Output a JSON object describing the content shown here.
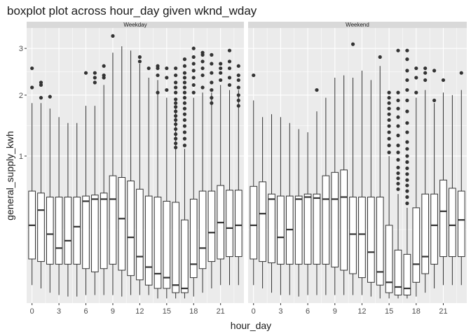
{
  "chart_data": {
    "type": "boxplot",
    "title": "boxplot plot across hour_day given wknd_wday",
    "xlabel": "hour_day",
    "ylabel": "general_supply_kwh",
    "y_scale": "sqrt",
    "ylim": [
      0,
      3.5
    ],
    "xlim": [
      -0.6,
      23.6
    ],
    "x_ticks": [
      0,
      3,
      6,
      9,
      12,
      15,
      18,
      21
    ],
    "y_ticks": [
      1,
      2,
      3
    ],
    "grid": true,
    "colors": {
      "panel_bg": "#ebebeb",
      "strip_bg": "#d9d9d9",
      "grid_major": "#ffffff",
      "box_fill": "#ffffff",
      "box_line": "#333333",
      "outlier": "#333333"
    },
    "facets": [
      {
        "label": "Weekday",
        "boxes": [
          {
            "x": 0,
            "lower": 0.015,
            "q1": 0.09,
            "median": 0.28,
            "q3": 0.58,
            "upper": 1.85,
            "outliers": [
              2.15,
              2.55
            ]
          },
          {
            "x": 1,
            "lower": 0.01,
            "q1": 0.08,
            "median": 0.4,
            "q3": 0.56,
            "upper": 1.85,
            "outliers": [
              1.95,
              2.2,
              2.25
            ]
          },
          {
            "x": 2,
            "lower": 0.005,
            "q1": 0.07,
            "median": 0.22,
            "q3": 0.52,
            "upper": 1.75,
            "outliers": [
              1.97
            ]
          },
          {
            "x": 3,
            "lower": 0.003,
            "q1": 0.07,
            "median": 0.14,
            "q3": 0.52,
            "upper": 1.6,
            "outliers": []
          },
          {
            "x": 4,
            "lower": 0.002,
            "q1": 0.07,
            "median": 0.18,
            "q3": 0.52,
            "upper": 1.5,
            "outliers": []
          },
          {
            "x": 5,
            "lower": 0.002,
            "q1": 0.07,
            "median": 0.27,
            "q3": 0.52,
            "upper": 1.5,
            "outliers": []
          },
          {
            "x": 6,
            "lower": 0.003,
            "q1": 0.055,
            "median": 0.48,
            "q3": 0.53,
            "upper": 1.8,
            "outliers": [
              2.45
            ]
          },
          {
            "x": 7,
            "lower": 0.003,
            "q1": 0.045,
            "median": 0.5,
            "q3": 0.54,
            "upper": 1.8,
            "outliers": [
              2.25,
              2.35,
              2.45
            ]
          },
          {
            "x": 8,
            "lower": 0.003,
            "q1": 0.055,
            "median": 0.5,
            "q3": 0.56,
            "upper": 2.2,
            "outliers": [
              2.35,
              2.4,
              2.6
            ]
          },
          {
            "x": 9,
            "lower": 0.003,
            "q1": 0.07,
            "median": 0.5,
            "q3": 0.75,
            "upper": 2.9,
            "outliers": [
              3.3
            ]
          },
          {
            "x": 10,
            "lower": 0.002,
            "q1": 0.05,
            "median": 0.33,
            "q3": 0.73,
            "upper": 3.05,
            "outliers": []
          },
          {
            "x": 11,
            "lower": 0.003,
            "q1": 0.035,
            "median": 0.2,
            "q3": 0.69,
            "upper": 2.95,
            "outliers": []
          },
          {
            "x": 12,
            "lower": 0.003,
            "q1": 0.025,
            "median": 0.1,
            "q3": 0.6,
            "upper": 2.65,
            "outliers": [
              2.7,
              2.8
            ]
          },
          {
            "x": 13,
            "lower": 0.003,
            "q1": 0.015,
            "median": 0.06,
            "q3": 0.53,
            "upper": 2.35,
            "outliers": [
              2.55
            ]
          },
          {
            "x": 14,
            "lower": 0.001,
            "q1": 0.01,
            "median": 0.04,
            "q3": 0.52,
            "upper": 2.3,
            "outliers": [
              2.05,
              2.4,
              2.55,
              2.6
            ]
          },
          {
            "x": 15,
            "lower": 0.001,
            "q1": 0.01,
            "median": 0.03,
            "q3": 0.48,
            "upper": 1.95,
            "outliers": [
              2.1,
              2.35,
              2.55
            ]
          },
          {
            "x": 16,
            "lower": 0.001,
            "q1": 0.005,
            "median": 0.015,
            "q3": 0.47,
            "upper": 1.75,
            "outliers": [
              1.12,
              1.18,
              1.25,
              1.32,
              1.4,
              1.48,
              1.55,
              1.62,
              1.7,
              1.78,
              1.85,
              1.92,
              2.05,
              2.15,
              2.25,
              2.4,
              2.55
            ]
          },
          {
            "x": 17,
            "lower": 0.001,
            "q1": 0.005,
            "median": 0.01,
            "q3": 0.32,
            "upper": 1.1,
            "outliers": [
              1.15,
              1.25,
              1.35,
              1.45,
              1.55,
              1.65,
              1.75,
              1.85,
              1.95,
              2.05,
              2.15,
              2.25,
              2.35,
              2.45,
              2.6,
              2.75
            ]
          },
          {
            "x": 18,
            "lower": 0.002,
            "q1": 0.03,
            "median": 0.07,
            "q3": 0.5,
            "upper": 1.95,
            "outliers": [
              2.05,
              2.2,
              2.35,
              2.5,
              2.65,
              2.8,
              3.0
            ]
          },
          {
            "x": 19,
            "lower": 0.005,
            "q1": 0.055,
            "median": 0.14,
            "q3": 0.58,
            "upper": 2.05,
            "outliers": [
              2.15,
              2.4,
              2.55,
              2.7,
              2.85,
              2.9
            ]
          },
          {
            "x": 20,
            "lower": 0.01,
            "q1": 0.08,
            "median": 0.23,
            "q3": 0.58,
            "upper": 2.05,
            "outliers": [
              1.85,
              1.95,
              2.1,
              2.25,
              2.45,
              2.65,
              2.85
            ]
          },
          {
            "x": 21,
            "lower": 0.015,
            "q1": 0.09,
            "median": 0.3,
            "q3": 0.64,
            "upper": 2.2,
            "outliers": [
              2.3,
              2.45,
              2.55,
              2.65
            ]
          },
          {
            "x": 22,
            "lower": 0.015,
            "q1": 0.1,
            "median": 0.26,
            "q3": 0.59,
            "upper": 2.1,
            "outliers": [
              2.2,
              2.35,
              2.55,
              2.7,
              2.95
            ]
          },
          {
            "x": 23,
            "lower": 0.015,
            "q1": 0.1,
            "median": 0.28,
            "q3": 0.59,
            "upper": 2.1,
            "outliers": [
              1.8,
              1.9,
              2.0,
              2.15,
              2.3,
              2.4,
              2.6
            ]
          }
        ]
      },
      {
        "label": "Weekend",
        "boxes": [
          {
            "x": 0,
            "lower": 0.015,
            "q1": 0.09,
            "median": 0.28,
            "q3": 0.63,
            "upper": 1.9,
            "outliers": [
              2.4
            ]
          },
          {
            "x": 1,
            "lower": 0.01,
            "q1": 0.08,
            "median": 0.37,
            "q3": 0.68,
            "upper": 1.6,
            "outliers": []
          },
          {
            "x": 2,
            "lower": 0.005,
            "q1": 0.075,
            "median": 0.5,
            "q3": 0.55,
            "upper": 1.65,
            "outliers": []
          },
          {
            "x": 3,
            "lower": 0.003,
            "q1": 0.07,
            "median": 0.2,
            "q3": 0.53,
            "upper": 1.6,
            "outliers": []
          },
          {
            "x": 4,
            "lower": 0.003,
            "q1": 0.07,
            "median": 0.25,
            "q3": 0.53,
            "upper": 1.5,
            "outliers": []
          },
          {
            "x": 5,
            "lower": 0.002,
            "q1": 0.07,
            "median": 0.5,
            "q3": 0.53,
            "upper": 1.4,
            "outliers": []
          },
          {
            "x": 6,
            "lower": 0.003,
            "q1": 0.07,
            "median": 0.52,
            "q3": 0.55,
            "upper": 1.35,
            "outliers": []
          },
          {
            "x": 7,
            "lower": 0.003,
            "q1": 0.07,
            "median": 0.51,
            "q3": 0.55,
            "upper": 1.7,
            "outliers": [
              2.1
            ]
          },
          {
            "x": 8,
            "lower": 0.003,
            "q1": 0.07,
            "median": 0.5,
            "q3": 0.75,
            "upper": 1.95,
            "outliers": []
          },
          {
            "x": 9,
            "lower": 0.003,
            "q1": 0.06,
            "median": 0.5,
            "q3": 0.79,
            "upper": 2.35,
            "outliers": []
          },
          {
            "x": 10,
            "lower": 0.003,
            "q1": 0.05,
            "median": 0.52,
            "q3": 0.82,
            "upper": 2.4,
            "outliers": []
          },
          {
            "x": 11,
            "lower": 0.003,
            "q1": 0.04,
            "median": 0.22,
            "q3": 0.52,
            "upper": 2.35,
            "outliers": [
              3.1
            ]
          },
          {
            "x": 12,
            "lower": 0.003,
            "q1": 0.03,
            "median": 0.22,
            "q3": 0.52,
            "upper": 2.5,
            "outliers": []
          },
          {
            "x": 13,
            "lower": 0.002,
            "q1": 0.02,
            "median": 0.12,
            "q3": 0.52,
            "upper": 2.3,
            "outliers": []
          },
          {
            "x": 14,
            "lower": 0.001,
            "q1": 0.015,
            "median": 0.045,
            "q3": 0.52,
            "upper": 2.6,
            "outliers": [
              2.8
            ]
          },
          {
            "x": 15,
            "lower": 0.001,
            "q1": 0.005,
            "median": 0.02,
            "q3": 0.28,
            "upper": 1.0,
            "outliers": [
              1.05,
              1.15,
              1.25,
              1.35,
              1.45,
              1.55,
              1.65,
              1.75,
              1.85,
              1.95,
              2.05
            ]
          },
          {
            "x": 16,
            "lower": 0.001,
            "q1": 0.003,
            "median": 0.012,
            "q3": 0.13,
            "upper": 0.55,
            "outliers": [
              0.6,
              0.66,
              0.72,
              0.78,
              0.85,
              0.95,
              1.05,
              1.15,
              1.3,
              1.45,
              1.6,
              1.75,
              1.9,
              2.05,
              2.95
            ]
          },
          {
            "x": 17,
            "lower": 0.001,
            "q1": 0.003,
            "median": 0.01,
            "q3": 0.11,
            "upper": 0.42,
            "outliers": [
              0.46,
              0.52,
              0.58,
              0.64,
              0.7,
              0.77,
              0.84,
              0.92,
              1.0,
              1.1,
              1.2,
              1.35,
              1.5,
              1.7,
              1.9,
              2.1,
              2.3,
              2.5,
              2.75,
              2.95
            ]
          },
          {
            "x": 18,
            "lower": 0.002,
            "q1": 0.02,
            "median": 0.07,
            "q3": 0.42,
            "upper": 1.95,
            "outliers": [
              2.05,
              2.35,
              2.55
            ]
          },
          {
            "x": 19,
            "lower": 0.005,
            "q1": 0.04,
            "median": 0.1,
            "q3": 0.55,
            "upper": 2.1,
            "outliers": [
              2.3,
              2.45,
              2.55
            ]
          },
          {
            "x": 20,
            "lower": 0.01,
            "q1": 0.07,
            "median": 0.28,
            "q3": 0.55,
            "upper": 1.85,
            "outliers": [
              1.9,
              2.5
            ]
          },
          {
            "x": 21,
            "lower": 0.015,
            "q1": 0.1,
            "median": 0.39,
            "q3": 0.7,
            "upper": 2.05,
            "outliers": [
              2.3
            ]
          },
          {
            "x": 22,
            "lower": 0.015,
            "q1": 0.1,
            "median": 0.28,
            "q3": 0.61,
            "upper": 2.0,
            "outliers": []
          },
          {
            "x": 23,
            "lower": 0.015,
            "q1": 0.1,
            "median": 0.32,
            "q3": 0.58,
            "upper": 2.1,
            "outliers": [
              2.45
            ]
          }
        ]
      }
    ]
  }
}
